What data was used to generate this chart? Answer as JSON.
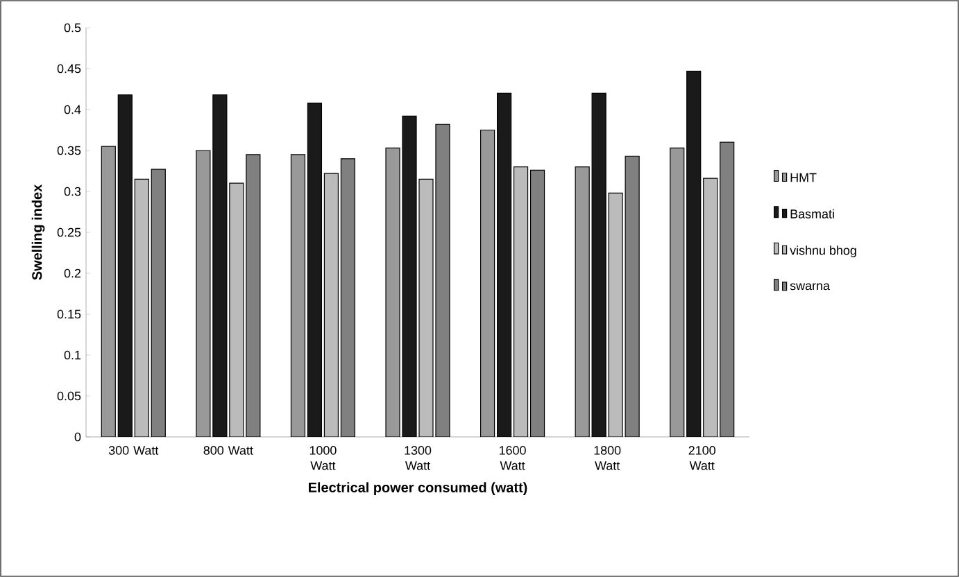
{
  "chart_data": {
    "type": "bar",
    "xlabel": "Electrical power consumed (watt)",
    "ylabel": "Swelling index",
    "categories": [
      "300 Watt",
      "800 Watt",
      "1000 Watt",
      "1300 Watt",
      "1600 Watt",
      "1800 Watt",
      "2100 Watt"
    ],
    "series": [
      {
        "name": "HMT",
        "color": "#999999",
        "values": [
          0.355,
          0.35,
          0.345,
          0.353,
          0.375,
          0.33,
          0.353
        ]
      },
      {
        "name": "Basmati",
        "color": "#1a1a1a",
        "values": [
          0.418,
          0.418,
          0.408,
          0.392,
          0.42,
          0.42,
          0.447
        ]
      },
      {
        "name": "vishnu bhog",
        "color": "#bbbbbb",
        "values": [
          0.315,
          0.31,
          0.322,
          0.315,
          0.33,
          0.298,
          0.316
        ]
      },
      {
        "name": "swarna",
        "color": "#808080",
        "values": [
          0.327,
          0.345,
          0.34,
          0.382,
          0.326,
          0.343,
          0.36
        ]
      }
    ],
    "ylim": [
      0,
      0.5
    ],
    "yticks": [
      0,
      0.05,
      0.1,
      0.15,
      0.2,
      0.25,
      0.3,
      0.35,
      0.4,
      0.45,
      0.5
    ],
    "grid": false,
    "legend": "right"
  }
}
